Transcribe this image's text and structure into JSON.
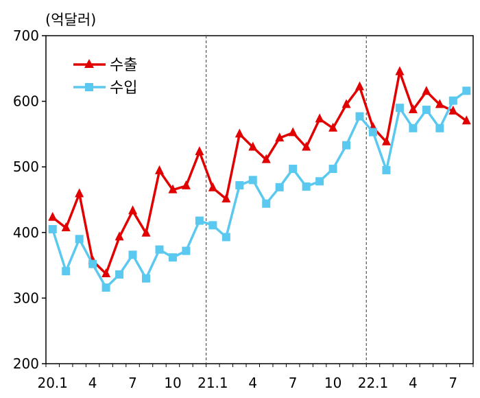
{
  "chart_data": {
    "type": "line",
    "unit_label": "(억달러)",
    "x_tick_labels": [
      "20.1",
      "4",
      "7",
      "10",
      "21.1",
      "4",
      "7",
      "10",
      "22.1",
      "4",
      "7"
    ],
    "x": [
      "20.1",
      "20.2",
      "20.3",
      "20.4",
      "20.5",
      "20.6",
      "20.7",
      "20.8",
      "20.9",
      "20.10",
      "20.11",
      "20.12",
      "21.1",
      "21.2",
      "21.3",
      "21.4",
      "21.5",
      "21.6",
      "21.7",
      "21.8",
      "21.9",
      "21.10",
      "21.11",
      "21.12",
      "22.1",
      "22.2",
      "22.3",
      "22.4",
      "22.5",
      "22.6",
      "22.7",
      "22.8"
    ],
    "y_ticks": [
      200,
      300,
      400,
      500,
      600,
      700
    ],
    "ylim": [
      200,
      700
    ],
    "year_dividers": [
      "20.12|21.1",
      "21.12|22.1"
    ],
    "legend_position": "top-left",
    "series": [
      {
        "name": "수출",
        "color": "#e00000",
        "marker": "triangle",
        "values": [
          423,
          407,
          459,
          357,
          337,
          393,
          433,
          399,
          494,
          465,
          471,
          523,
          468,
          451,
          550,
          530,
          511,
          544,
          552,
          530,
          573,
          559,
          595,
          622,
          560,
          538,
          645,
          587,
          615,
          595,
          585,
          570
        ]
      },
      {
        "name": "수입",
        "color": "#5bc8ef",
        "marker": "square",
        "values": [
          405,
          341,
          390,
          352,
          316,
          336,
          366,
          330,
          374,
          362,
          372,
          418,
          411,
          393,
          472,
          480,
          444,
          469,
          497,
          470,
          478,
          497,
          533,
          577,
          553,
          495,
          590,
          559,
          587,
          559,
          601,
          616
        ]
      }
    ]
  }
}
